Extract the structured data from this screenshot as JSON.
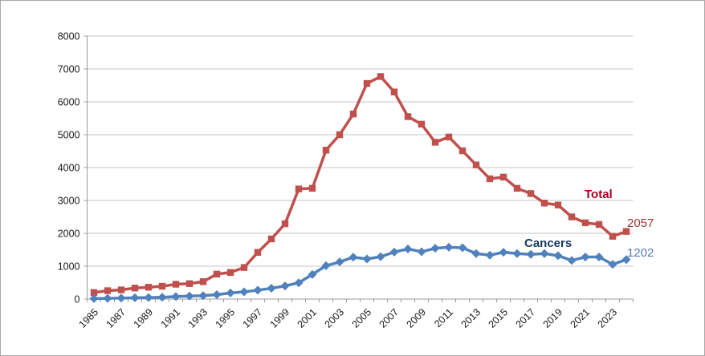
{
  "chart": {
    "background": "#ffffff",
    "border_color": "#a9a9a9",
    "gridline_color": "#c6c6c6",
    "axis_color": "#9b9b9b",
    "tick_label_color": "#1a1a1a",
    "annotations": {
      "total_label": "Total",
      "total_label_color": "#a50021",
      "total_end_value": "2057",
      "total_end_value_color": "#953735",
      "cancers_label": "Cancers",
      "cancers_label_color": "#17375e",
      "cancers_end_value": "1202",
      "cancers_end_value_color": "#567cae"
    }
  },
  "chart_data": {
    "type": "line",
    "title": "",
    "xlabel": "",
    "ylabel": "",
    "ylim": [
      0,
      8000
    ],
    "y_tick_step": 1000,
    "y_tick_labels": [
      "0",
      "1000",
      "2000",
      "3000",
      "4000",
      "5000",
      "6000",
      "7000",
      "8000"
    ],
    "grid": true,
    "x": [
      1985,
      1986,
      1987,
      1988,
      1989,
      1990,
      1991,
      1992,
      1993,
      1994,
      1995,
      1996,
      1997,
      1998,
      1999,
      2000,
      2001,
      2002,
      2003,
      2004,
      2005,
      2006,
      2007,
      2008,
      2009,
      2010,
      2011,
      2012,
      2013,
      2014,
      2015,
      2016,
      2017,
      2018,
      2019,
      2020,
      2021,
      2022,
      2023,
      2024
    ],
    "x_tick_labels": [
      "1985",
      "1987",
      "1989",
      "1991",
      "1993",
      "1995",
      "1997",
      "1999",
      "2001",
      "2003",
      "2005",
      "2007",
      "2009",
      "2011",
      "2013",
      "2015",
      "2017",
      "2019",
      "2021",
      "2023"
    ],
    "series": [
      {
        "name": "Total",
        "color": "#c0504d",
        "marker": "square",
        "values": [
          200,
          255,
          280,
          335,
          360,
          390,
          450,
          470,
          530,
          760,
          810,
          960,
          1420,
          1830,
          2290,
          3350,
          3370,
          4530,
          5000,
          5630,
          6560,
          6770,
          6300,
          5550,
          5320,
          4770,
          4930,
          4510,
          4080,
          3660,
          3710,
          3370,
          3210,
          2920,
          2860,
          2500,
          2320,
          2270,
          1910,
          2057
        ]
      },
      {
        "name": "Cancers",
        "color": "#4f81bd",
        "marker": "diamond",
        "values": [
          15,
          20,
          30,
          40,
          45,
          55,
          75,
          90,
          105,
          135,
          185,
          220,
          270,
          330,
          400,
          495,
          750,
          1015,
          1130,
          1275,
          1220,
          1290,
          1430,
          1525,
          1440,
          1545,
          1575,
          1560,
          1385,
          1335,
          1425,
          1385,
          1360,
          1385,
          1320,
          1175,
          1280,
          1280,
          1055,
          1202
        ]
      }
    ],
    "legend_position": "inline-series-labels"
  }
}
